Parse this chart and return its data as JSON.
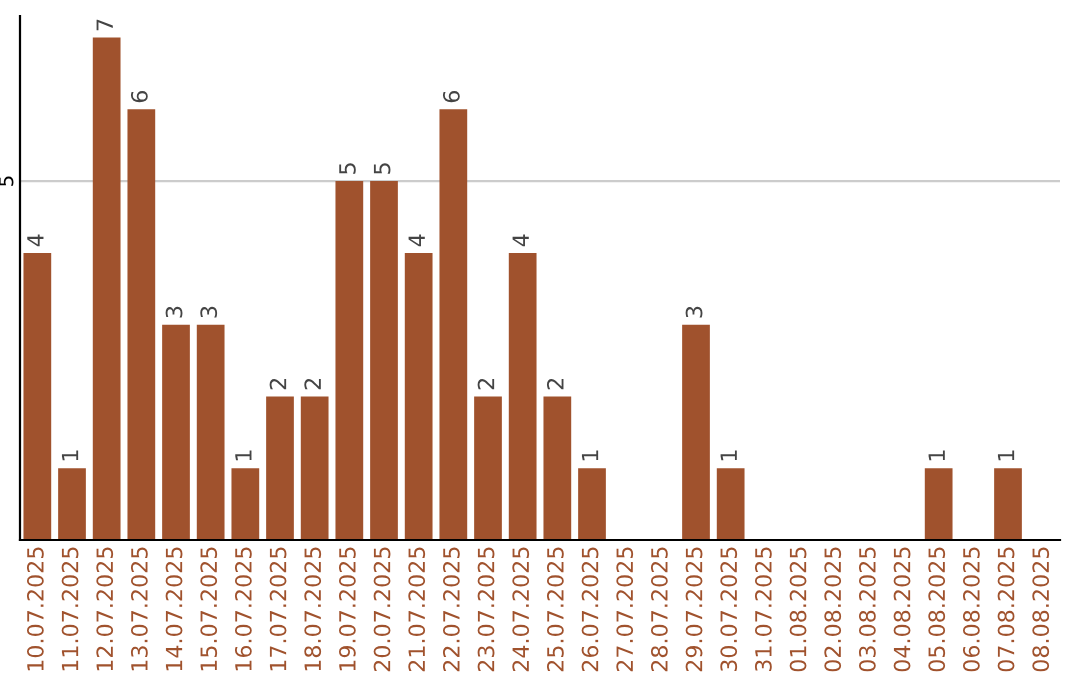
{
  "chart_data": {
    "type": "bar",
    "categories": [
      "10.07.2025",
      "11.07.2025",
      "12.07.2025",
      "13.07.2025",
      "14.07.2025",
      "15.07.2025",
      "16.07.2025",
      "17.07.2025",
      "18.07.2025",
      "19.07.2025",
      "20.07.2025",
      "21.07.2025",
      "22.07.2025",
      "23.07.2025",
      "24.07.2025",
      "25.07.2025",
      "26.07.2025",
      "27.07.2025",
      "28.07.2025",
      "29.07.2025",
      "30.07.2025",
      "31.07.2025",
      "01.08.2025",
      "02.08.2025",
      "03.08.2025",
      "04.08.2025",
      "05.08.2025",
      "06.08.2025",
      "07.08.2025",
      "08.08.2025"
    ],
    "values": [
      4,
      1,
      7,
      6,
      3,
      3,
      1,
      2,
      2,
      5,
      5,
      4,
      6,
      2,
      4,
      2,
      1,
      0,
      0,
      3,
      1,
      0,
      0,
      0,
      0,
      0,
      1,
      0,
      1,
      0
    ],
    "value_labels": [
      "4",
      "1",
      "7",
      "6",
      "3",
      "3",
      "1",
      "2",
      "2",
      "5",
      "5",
      "4",
      "6",
      "2",
      "4",
      "2",
      "1",
      null,
      null,
      "3",
      "1",
      null,
      null,
      null,
      null,
      null,
      "1",
      null,
      "1",
      null
    ],
    "color": "#a0522d",
    "ylim": [
      0,
      7.3
    ],
    "yticks": [
      5
    ],
    "grid": "y"
  }
}
